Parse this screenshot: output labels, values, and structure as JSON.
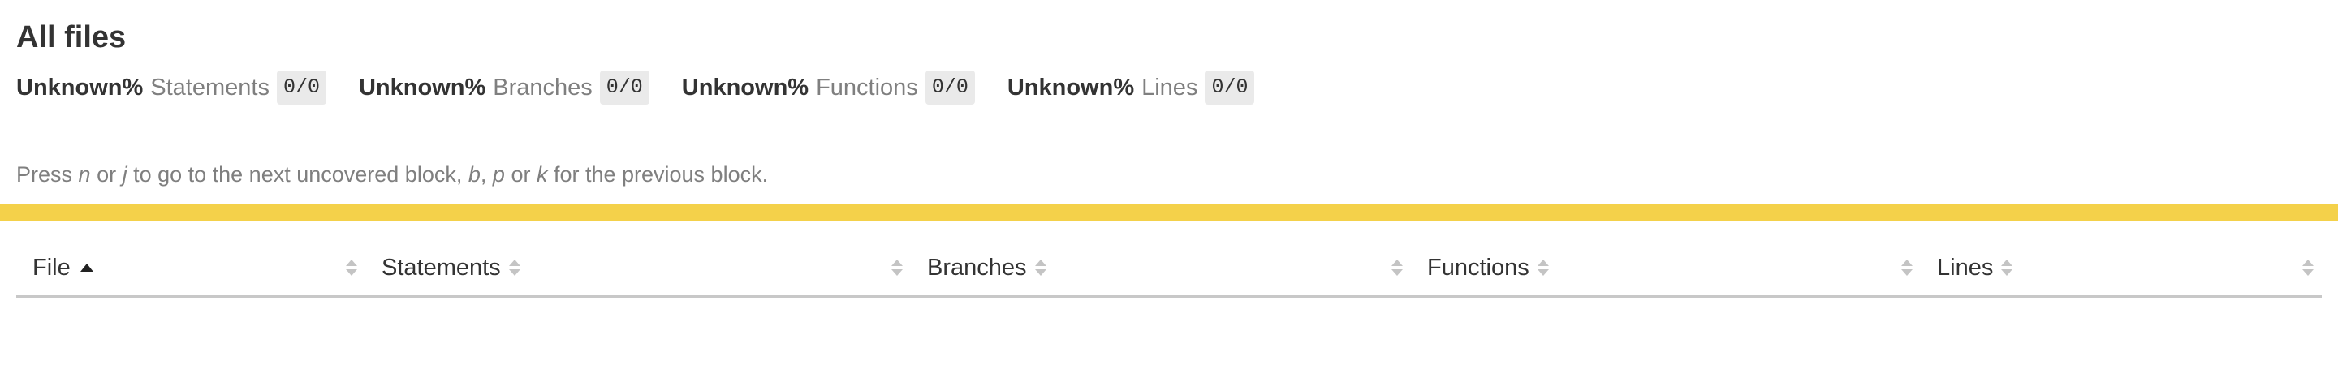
{
  "page": {
    "title": "All files"
  },
  "summary": {
    "metrics": [
      {
        "percent": "Unknown%",
        "label": "Statements",
        "fraction": "0/0"
      },
      {
        "percent": "Unknown%",
        "label": "Branches",
        "fraction": "0/0"
      },
      {
        "percent": "Unknown%",
        "label": "Functions",
        "fraction": "0/0"
      },
      {
        "percent": "Unknown%",
        "label": "Lines",
        "fraction": "0/0"
      }
    ]
  },
  "help": {
    "prefix": "Press ",
    "key1": "n",
    "or1": " or ",
    "key2": "j",
    "middle": " to go to the next uncovered block, ",
    "key3": "b",
    "comma": ", ",
    "key4": "p",
    "or2": " or ",
    "key5": "k",
    "suffix": " for the previous block."
  },
  "status": {
    "color": "#f4d14a"
  },
  "table": {
    "columns": [
      {
        "label": "File",
        "sorted": "ascending"
      },
      {
        "label": "Statements"
      },
      {
        "label": "Branches"
      },
      {
        "label": "Functions"
      },
      {
        "label": "Lines"
      }
    ]
  },
  "icons": {
    "sort_ascending": "triangle-up-icon",
    "sortable": "sort-arrows-icon"
  }
}
